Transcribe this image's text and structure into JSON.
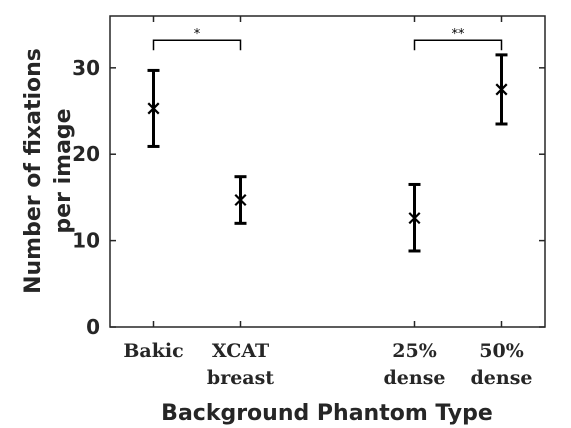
{
  "chart_data": {
    "type": "scatter",
    "title": "",
    "xlabel": "Background Phantom Type",
    "ylabel_lines": [
      "Number of fixations",
      "per image"
    ],
    "categories": [
      [
        "Bakic"
      ],
      [
        "XCAT",
        "breast"
      ],
      [
        "25%",
        "dense"
      ],
      [
        "50%",
        "dense"
      ]
    ],
    "x_positions": [
      1,
      2,
      4,
      5
    ],
    "xlim": [
      0.5,
      5.5
    ],
    "ylim": [
      0,
      36
    ],
    "yticks": [
      0,
      10,
      20,
      30
    ],
    "grid": false,
    "marker": "asterisk",
    "series": [
      {
        "values": [
          25.3,
          14.7,
          12.6,
          27.5
        ],
        "error_low": [
          20.9,
          12.0,
          8.8,
          23.5
        ],
        "error_high": [
          29.7,
          17.4,
          16.5,
          31.5
        ]
      }
    ],
    "significance": [
      {
        "from_index": 0,
        "to_index": 1,
        "label": "*",
        "y": 33.2
      },
      {
        "from_index": 2,
        "to_index": 3,
        "label": "**",
        "y": 33.2
      }
    ]
  },
  "colors": {
    "axis": "#262626",
    "data": "#000000",
    "background": "#ffffff"
  }
}
